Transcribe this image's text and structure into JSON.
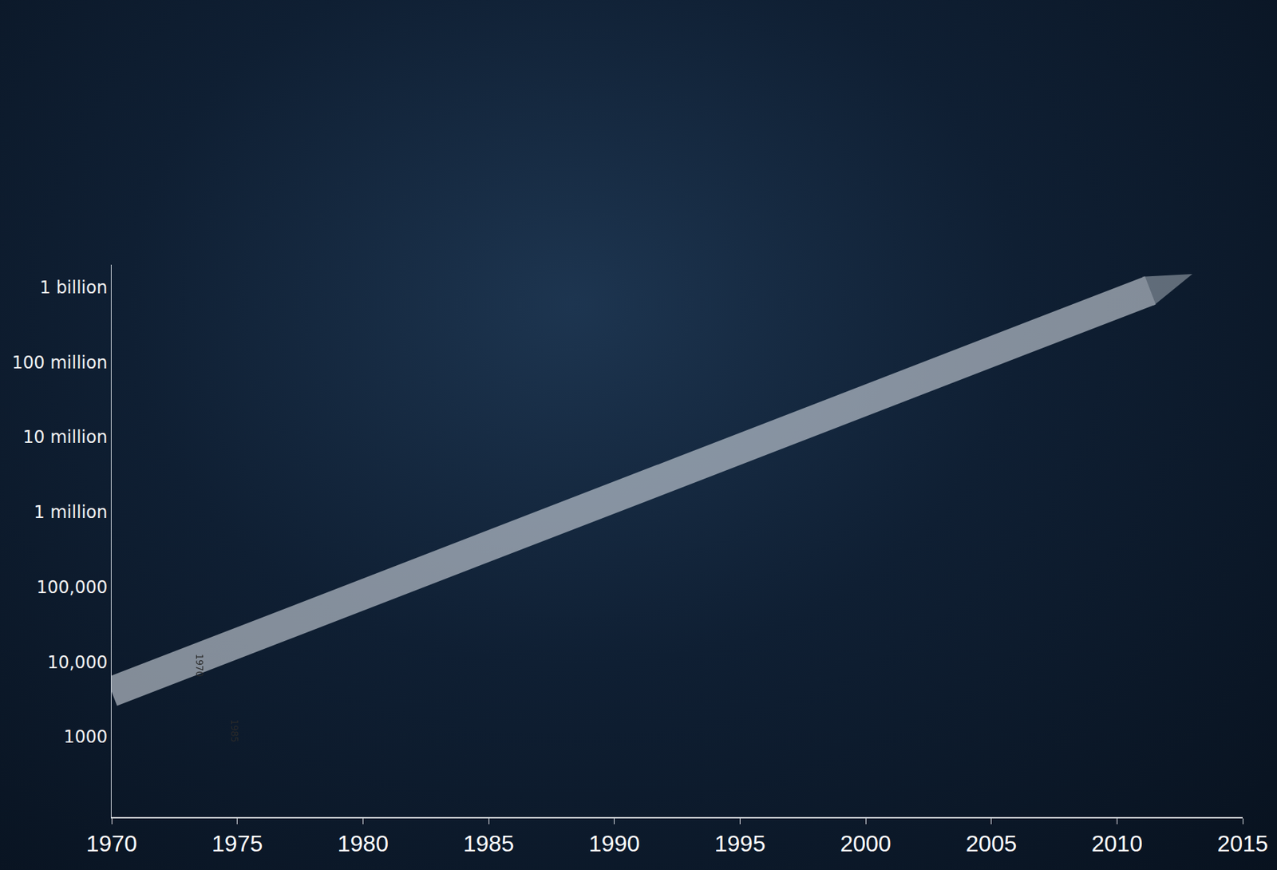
{
  "chart_data": {
    "type": "line",
    "log": "y",
    "grid": false,
    "x": [
      1970,
      2013
    ],
    "values": [
      4000,
      1500000000
    ],
    "color": "#e6ecf2",
    "marker": "arrow",
    "xlim": [
      1970,
      2015
    ],
    "xticks": [
      1970,
      1975,
      1980,
      1985,
      1990,
      1995,
      2000,
      2005,
      2010,
      2015
    ],
    "ylim": [
      85,
      2000000000
    ],
    "yticks": [
      1000,
      {
        "value": 10000,
        "label": "10,000"
      },
      {
        "value": 100000,
        "label": "100,000"
      },
      {
        "value": 1000000,
        "label": "1 million"
      },
      {
        "value": 10000000,
        "label": "10 million"
      },
      {
        "value": 100000000,
        "label": "100 million"
      },
      {
        "value": 1000000000,
        "label": "1 billion"
      }
    ],
    "annotations": [
      {
        "text": "1970",
        "x": 1973.5,
        "y": 9000
      },
      {
        "text": "1985",
        "x": 1974.9,
        "y": 1200
      }
    ]
  }
}
